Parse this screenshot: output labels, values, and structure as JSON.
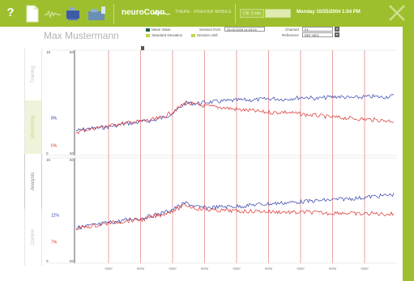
{
  "toolbar": {
    "help_label": "?",
    "brand": "neuroConn",
    "product": "THERA · PRAXIS® MOBILE",
    "field_text": "CB: 3 min",
    "date_text": "Monday  10/25/2004  1:04 PM"
  },
  "patient": {
    "name": "Max Mustermann"
  },
  "controls": {
    "mean_value_label": "Mean Value",
    "std_dev_label": "Standard Deviation",
    "session_from_label": "Session from",
    "session_from_value": "25.03.2003 14:15:24",
    "session_until_label": "Session until",
    "channel_label": "Channel",
    "channel_value": "Fz",
    "reference_label": "Reference",
    "reference_value": "REF SEG",
    "mean_color": "#1f5c4c",
    "std_color": "#c6d34a"
  },
  "sidebar": {
    "tabs": [
      {
        "label": "Training"
      },
      {
        "label": "Monitoring"
      },
      {
        "label": "Analysis"
      },
      {
        "label": "Control"
      }
    ]
  },
  "colors": {
    "brand_green": "#9dbf2e",
    "blue_series": "#2f3fa8",
    "red_series": "#d9302f",
    "session_marker": "#e58a8a"
  },
  "chart_data": [
    {
      "type": "line",
      "axis_top_label": "15",
      "axis_top_right": "50",
      "axis_bottom_label": "0",
      "axis_bottom_right": "50",
      "series": [
        {
          "label": "8%",
          "color": "#2f3fa8",
          "values": [
            3.5,
            3.8,
            3.9,
            4.1,
            4.4,
            4.6,
            4.8,
            5.0,
            5.4,
            6.2,
            7.5,
            7.4,
            7.6,
            7.7,
            7.8,
            7.9,
            7.9,
            8.0,
            8.1,
            8.0,
            8.2,
            8.3,
            8.1,
            8.3,
            8.4,
            8.2,
            8.3,
            8.4,
            8.3,
            8.5
          ]
        },
        {
          "label": "6%",
          "color": "#d9302f",
          "values": [
            3.3,
            3.7,
            4.0,
            4.2,
            4.5,
            4.7,
            4.9,
            5.1,
            5.5,
            6.4,
            7.5,
            7.2,
            7.0,
            6.9,
            6.7,
            6.5,
            6.4,
            6.2,
            6.1,
            6.2,
            6.0,
            5.8,
            5.7,
            5.5,
            5.4,
            5.3,
            5.2,
            5.1,
            5.0,
            4.9
          ]
        }
      ]
    },
    {
      "type": "line",
      "axis_top_label": "15",
      "axis_top_right": "50",
      "axis_bottom_label": "0",
      "axis_bottom_right": "50",
      "series": [
        {
          "label": "12%",
          "color": "#2f3fa8",
          "values": [
            5.0,
            5.3,
            5.5,
            5.8,
            6.0,
            6.3,
            6.4,
            6.8,
            7.2,
            7.8,
            8.6,
            8.0,
            7.9,
            8.0,
            8.1,
            8.1,
            8.3,
            8.4,
            8.5,
            8.6,
            8.7,
            8.8,
            8.9,
            9.0,
            9.1,
            9.2,
            9.3,
            9.5,
            9.6,
            9.8
          ]
        },
        {
          "label": "7%",
          "color": "#d9302f",
          "values": [
            4.9,
            5.2,
            5.4,
            5.7,
            5.9,
            6.1,
            6.2,
            6.6,
            7.0,
            7.6,
            8.3,
            7.8,
            7.6,
            7.5,
            7.5,
            7.4,
            7.4,
            7.4,
            7.3,
            7.3,
            7.2,
            7.3,
            7.2,
            7.1,
            7.2,
            7.1,
            7.0,
            7.1,
            7.0,
            7.0
          ]
        }
      ]
    }
  ],
  "session_markers": {
    "count": 9,
    "label": "0000"
  }
}
